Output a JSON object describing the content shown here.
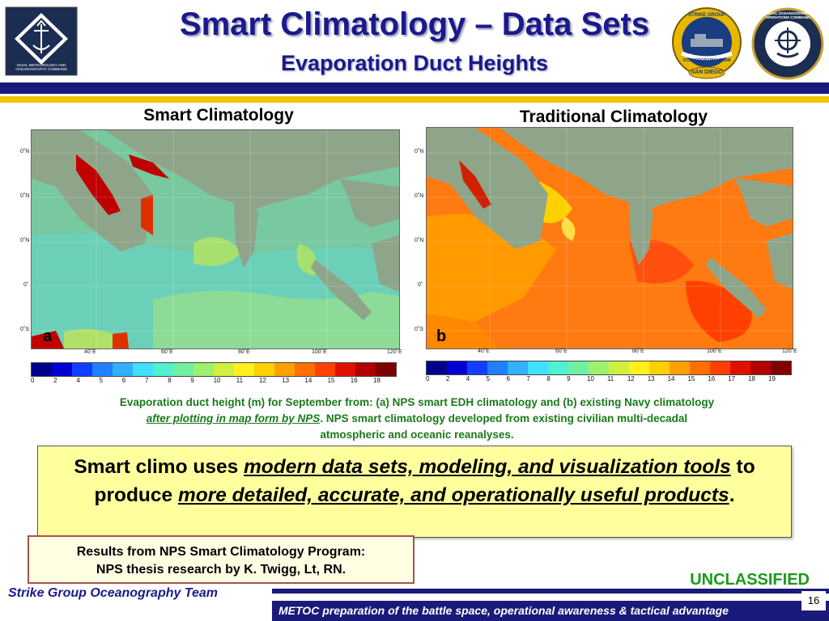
{
  "header": {
    "title": "Smart Climatology – Data Sets",
    "subtitle": "Evaporation Duct Heights",
    "left_logo_text": "NAVAL METEOROLOGY AND OCEANOGRAPHY COMMAND",
    "right_logo1_top": "STRIKE GROUP",
    "right_logo1_bottom": "SAN DIEGO",
    "right_logo1_band": "OCEANOGRAPHY TEAM",
    "right_logo2_text": "NAVAL OCEANOGRAPHY OPERATIONS COMMAND"
  },
  "maps": [
    {
      "title": "Smart Climatology",
      "panel_letter": "a",
      "lat_ticks": [
        "0˚N",
        "0˚N",
        "0˚N",
        "0˚",
        "0˚S"
      ],
      "lon_ticks": [
        "40˚E",
        "60˚E",
        "80˚E",
        "100˚E",
        "120˚E"
      ],
      "colorbar_labels": [
        "0",
        "2",
        "4",
        "5",
        "6",
        "7",
        "8",
        "9",
        "10",
        "11",
        "12",
        "13",
        "14",
        "15",
        "16",
        "18"
      ]
    },
    {
      "title": "Traditional Climatology",
      "panel_letter": "b",
      "lat_ticks": [
        "0˚N",
        "0˚N",
        "0˚N",
        "0˚",
        "0˚S"
      ],
      "lon_ticks": [
        "40˚E",
        "60˚E",
        "80˚E",
        "100˚E",
        "120˚E"
      ],
      "colorbar_labels": [
        "0",
        "2",
        "4",
        "5",
        "6",
        "7",
        "8",
        "9",
        "10",
        "11",
        "12",
        "13",
        "14",
        "15",
        "16",
        "17",
        "18",
        "19"
      ]
    }
  ],
  "colorbar_colors": [
    "#00008c",
    "#0000d0",
    "#1040ff",
    "#2080ff",
    "#30b0ff",
    "#40e0ff",
    "#50f0d0",
    "#70f0a0",
    "#a0f070",
    "#d0f040",
    "#fff020",
    "#ffd000",
    "#ffa000",
    "#ff7000",
    "#ff4000",
    "#e01000",
    "#b00000",
    "#800000"
  ],
  "caption": {
    "line1": "Evaporation duct height (m) for September from: (a) NPS smart EDH climatology and (b) existing Navy climatology",
    "link": "after plotting in map form by NPS",
    "line2_rest": ".  NPS smart climatology developed from existing civilian multi-decadal",
    "line3": "atmospheric and oceanic reanalyses."
  },
  "box": {
    "p1": "Smart climo uses ",
    "u1": "modern data sets, modeling, and visualization tools",
    "p2": " to produce ",
    "u2": "more detailed, accurate, and operationally useful products",
    "p3": "."
  },
  "results": {
    "line1": "Results from NPS Smart Climatology Program:",
    "line2": "NPS thesis research by K. Twigg, Lt, RN."
  },
  "footer": {
    "classification": "UNCLASSIFIED",
    "team": "Strike Group Oceanography Team",
    "motto": "METOC preparation of the battle space, operational awareness & tactical advantage",
    "page": "16"
  }
}
